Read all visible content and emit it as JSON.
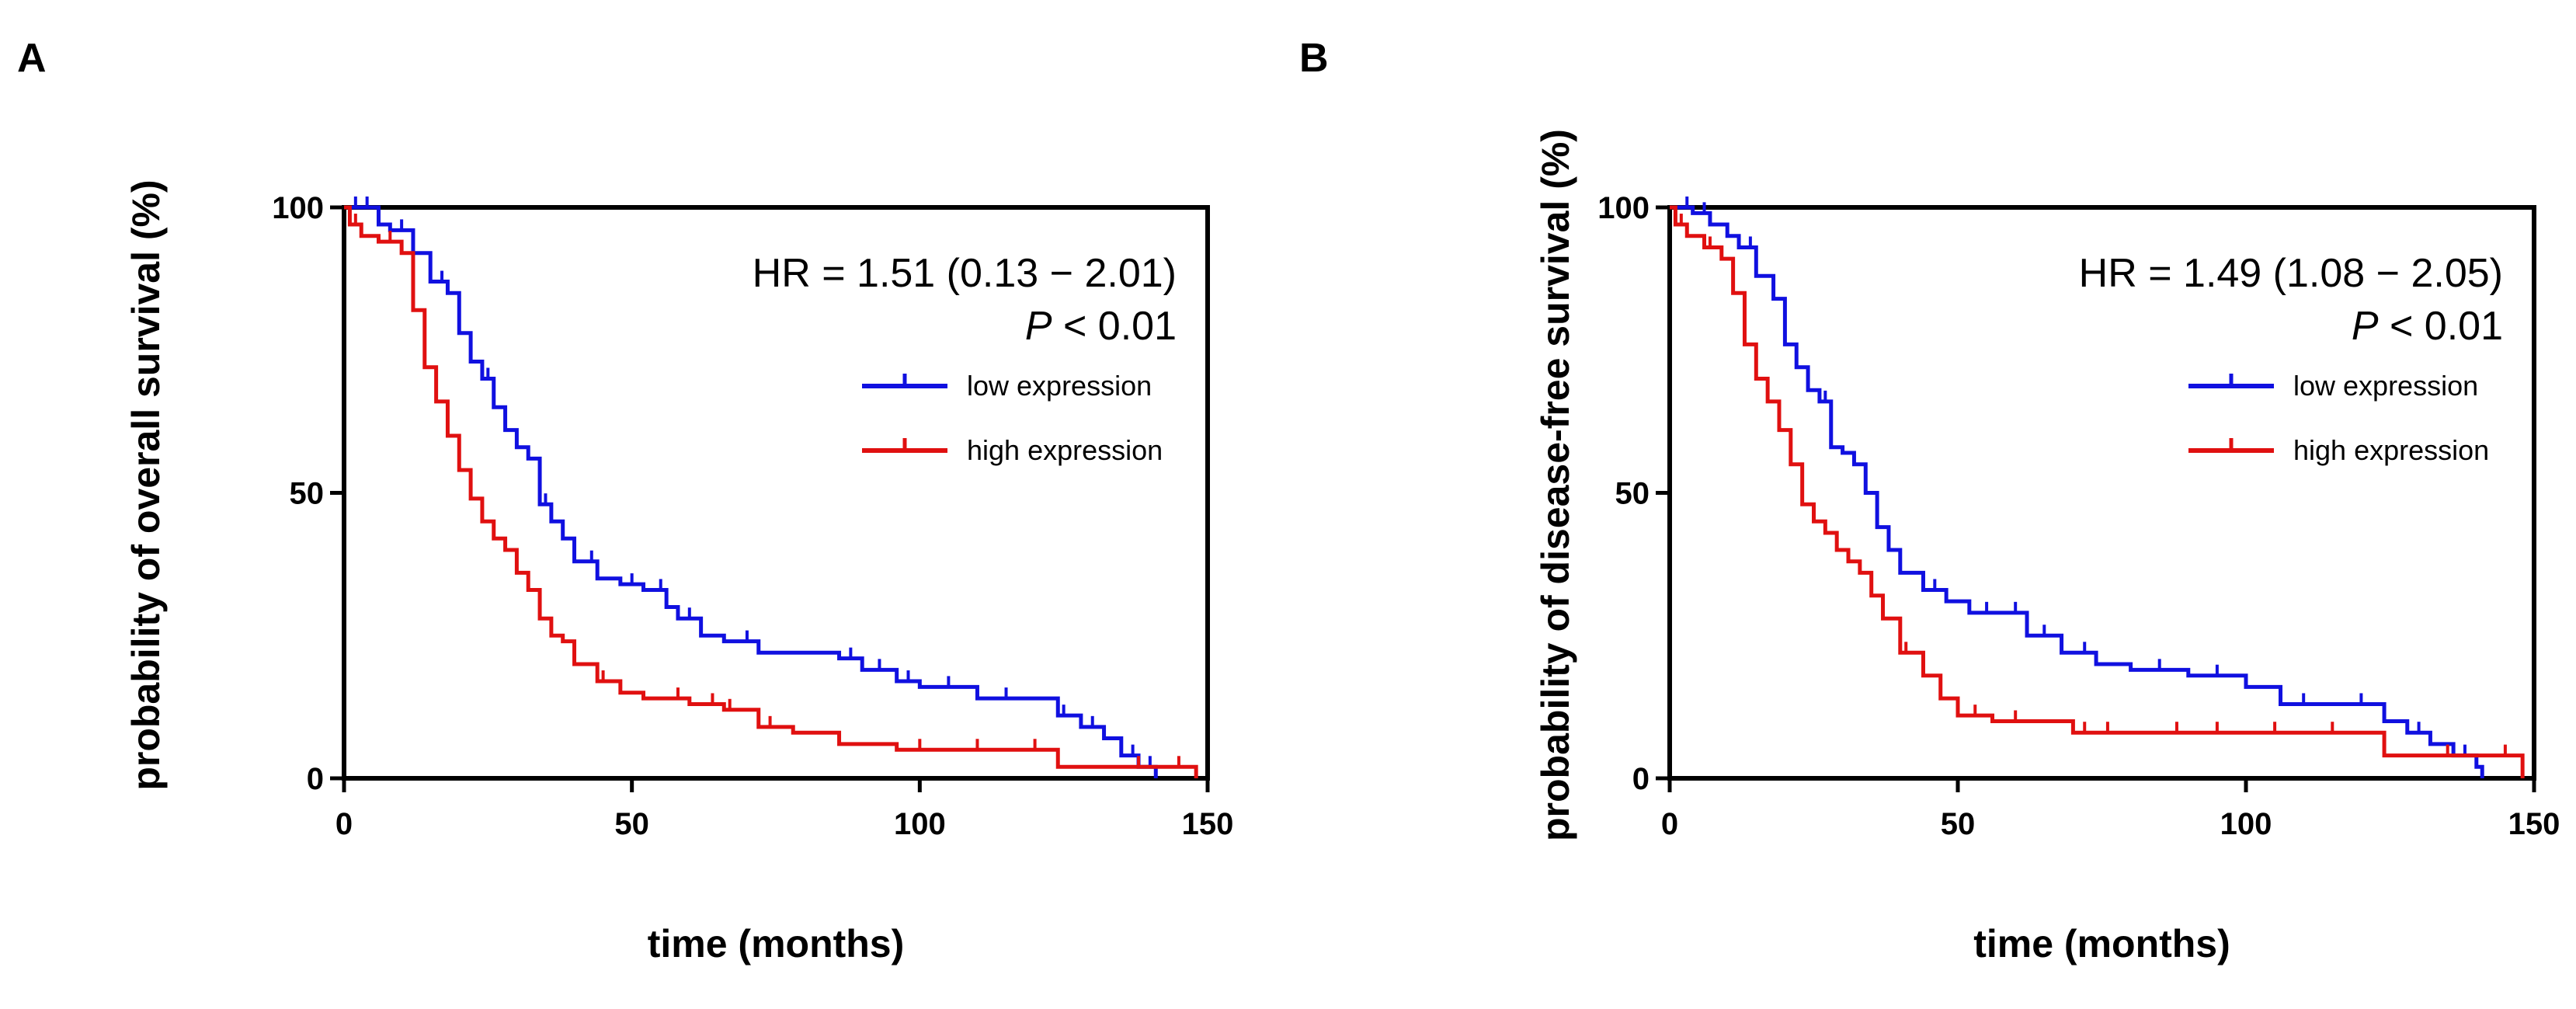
{
  "chart_data": [
    {
      "type": "line",
      "panel_label": "A",
      "title": "",
      "xlabel": "time (months)",
      "ylabel": "probability of overall survival (%)",
      "xlim": [
        0,
        150
      ],
      "ylim": [
        0,
        100
      ],
      "x_ticks": [
        "0",
        "50",
        "100",
        "150"
      ],
      "y_ticks": [
        "0",
        "50",
        "100"
      ],
      "grid": false,
      "legend_position": "upper-right",
      "annotation": {
        "hr": "HR = 1.51 (0.13 − 2.01)",
        "p_italic": "P",
        "p_rest": " < 0.01"
      },
      "series": [
        {
          "name": "low expression",
          "color": "#1010e0",
          "x": [
            0,
            3,
            6,
            8,
            12,
            15,
            18,
            20,
            22,
            24,
            26,
            28,
            30,
            32,
            34,
            36,
            38,
            40,
            44,
            48,
            52,
            56,
            58,
            62,
            66,
            72,
            80,
            86,
            90,
            96,
            100,
            110,
            120,
            124,
            128,
            132,
            135,
            138,
            141
          ],
          "y": [
            100,
            100,
            97,
            96,
            92,
            87,
            85,
            78,
            73,
            70,
            65,
            61,
            58,
            56,
            48,
            45,
            42,
            38,
            35,
            34,
            33,
            30,
            28,
            25,
            24,
            22,
            22,
            21,
            19,
            17,
            16,
            14,
            14,
            11,
            9,
            7,
            4,
            2,
            0
          ],
          "censor_x": [
            2,
            4,
            10,
            17,
            25,
            35,
            43,
            50,
            55,
            60,
            70,
            88,
            93,
            98,
            105,
            115,
            125,
            130,
            137,
            140
          ]
        },
        {
          "name": "high expression",
          "color": "#e01010",
          "x": [
            0,
            1,
            3,
            6,
            10,
            12,
            14,
            16,
            18,
            20,
            22,
            24,
            26,
            28,
            30,
            32,
            34,
            36,
            38,
            40,
            44,
            48,
            52,
            56,
            60,
            66,
            72,
            78,
            86,
            96,
            104,
            112,
            124,
            134,
            142,
            148
          ],
          "y": [
            100,
            97,
            95,
            94,
            92,
            82,
            72,
            66,
            60,
            54,
            49,
            45,
            42,
            40,
            36,
            33,
            28,
            25,
            24,
            20,
            17,
            15,
            14,
            14,
            13,
            12,
            9,
            8,
            6,
            5,
            5,
            5,
            2,
            2,
            2,
            0
          ],
          "censor_x": [
            2,
            8,
            30,
            45,
            58,
            64,
            67,
            74,
            100,
            110,
            120,
            138,
            145
          ]
        }
      ]
    },
    {
      "type": "line",
      "panel_label": "B",
      "title": "",
      "xlabel": "time (months)",
      "ylabel": "probability of disease-free survival (%)",
      "xlim": [
        0,
        150
      ],
      "ylim": [
        0,
        100
      ],
      "x_ticks": [
        "0",
        "50",
        "100",
        "150"
      ],
      "y_ticks": [
        "0",
        "50",
        "100"
      ],
      "grid": false,
      "legend_position": "upper-right",
      "annotation": {
        "hr": "HR = 1.49 (1.08 − 2.05)",
        "p_italic": "P",
        "p_rest": " < 0.01"
      },
      "series": [
        {
          "name": "low expression",
          "color": "#1010e0",
          "x": [
            0,
            4,
            7,
            10,
            12,
            15,
            18,
            20,
            22,
            24,
            26,
            28,
            30,
            32,
            34,
            36,
            38,
            40,
            44,
            48,
            52,
            56,
            62,
            68,
            74,
            80,
            90,
            100,
            106,
            116,
            124,
            128,
            132,
            136,
            140,
            141
          ],
          "y": [
            100,
            99,
            97,
            95,
            93,
            88,
            84,
            76,
            72,
            68,
            66,
            58,
            57,
            55,
            50,
            44,
            40,
            36,
            33,
            31,
            29,
            29,
            25,
            22,
            20,
            19,
            18,
            16,
            13,
            13,
            10,
            8,
            6,
            4,
            2,
            0
          ],
          "censor_x": [
            3,
            6,
            14,
            27,
            46,
            55,
            60,
            65,
            72,
            85,
            95,
            110,
            120,
            130,
            138
          ]
        },
        {
          "name": "high expression",
          "color": "#e01010",
          "x": [
            0,
            1,
            3,
            6,
            9,
            11,
            13,
            15,
            17,
            19,
            21,
            23,
            25,
            27,
            29,
            31,
            33,
            35,
            37,
            40,
            44,
            47,
            50,
            56,
            64,
            70,
            80,
            90,
            100,
            110,
            120,
            124,
            130,
            140,
            148
          ],
          "y": [
            100,
            97,
            95,
            93,
            91,
            85,
            76,
            70,
            66,
            61,
            55,
            48,
            45,
            43,
            40,
            38,
            36,
            32,
            28,
            22,
            18,
            14,
            11,
            10,
            10,
            8,
            8,
            8,
            8,
            8,
            8,
            4,
            4,
            4,
            0
          ],
          "censor_x": [
            2,
            7,
            41,
            53,
            60,
            72,
            76,
            88,
            95,
            105,
            115,
            135,
            145
          ]
        }
      ]
    }
  ]
}
